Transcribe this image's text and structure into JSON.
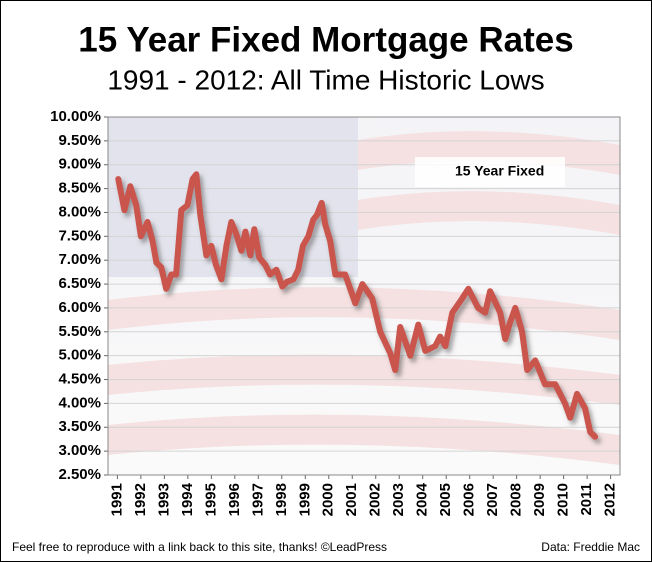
{
  "chart_data": {
    "type": "line",
    "title": "15 Year Fixed Mortgage Rates",
    "subtitle": "1991 - 2012: All Time Historic Lows",
    "footnotes": [
      "Feel free to reproduce with a link back to this site, thanks! ©LeadPress",
      "Data: Freddie Mac"
    ],
    "x": [
      1991.04,
      1991.3,
      1991.55,
      1991.8,
      1992.0,
      1992.28,
      1992.5,
      1992.66,
      1992.87,
      1993.08,
      1993.3,
      1993.5,
      1993.72,
      1993.98,
      1994.2,
      1994.36,
      1994.53,
      1994.79,
      1995.0,
      1995.2,
      1995.43,
      1995.64,
      1995.85,
      1996.06,
      1996.28,
      1996.45,
      1996.66,
      1996.83,
      1997.04,
      1997.3,
      1997.5,
      1997.77,
      1998.02,
      1998.23,
      1998.5,
      1998.7,
      1998.9,
      1999.13,
      1999.34,
      1999.5,
      1999.7,
      1999.85,
      2000.06,
      2000.28,
      2000.7,
      2001.13,
      2001.43,
      2001.85,
      2002.19,
      2002.62,
      2002.83,
      2003.04,
      2003.47,
      2003.81,
      2004.11,
      2004.53,
      2004.74,
      2004.96,
      2005.26,
      2005.68,
      2005.94,
      2006.36,
      2006.66,
      2006.87,
      2007.3,
      2007.51,
      2007.72,
      2007.94,
      2008.23,
      2008.45,
      2008.79,
      2009.21,
      2009.64,
      2010.06,
      2010.28,
      2010.57,
      2010.91,
      2011.13,
      2011.34
    ],
    "series": [
      {
        "name": "15 Year Fixed",
        "color": "#c9544e",
        "values": [
          8.7,
          8.05,
          8.55,
          8.15,
          7.5,
          7.8,
          7.4,
          6.95,
          6.85,
          6.4,
          6.7,
          6.7,
          8.05,
          8.15,
          8.7,
          8.8,
          7.95,
          7.1,
          7.3,
          6.9,
          6.6,
          7.3,
          7.8,
          7.55,
          7.2,
          7.6,
          7.1,
          7.65,
          7.05,
          6.9,
          6.7,
          6.8,
          6.45,
          6.55,
          6.6,
          6.8,
          7.3,
          7.5,
          7.85,
          7.95,
          8.2,
          7.75,
          7.4,
          6.7,
          6.7,
          6.1,
          6.5,
          6.2,
          5.5,
          5.05,
          4.7,
          5.6,
          5.0,
          5.65,
          5.1,
          5.2,
          5.4,
          5.2,
          5.9,
          6.2,
          6.4,
          6.0,
          5.9,
          6.35,
          5.9,
          5.35,
          5.7,
          6.0,
          5.5,
          4.7,
          4.9,
          4.4,
          4.4,
          4.0,
          3.7,
          4.2,
          3.9,
          3.4,
          3.3
        ]
      }
    ],
    "xlim": [
      1990.6,
      2012.4
    ],
    "xticks": [
      1991,
      1992,
      1993,
      1994,
      1995,
      1996,
      1997,
      1998,
      1999,
      2000,
      2001,
      2002,
      2003,
      2004,
      2005,
      2006,
      2007,
      2008,
      2009,
      2010,
      2011,
      2012
    ],
    "ylim": [
      2.5,
      10
    ],
    "yticks": [
      {
        "value": 2.5,
        "label": "2.50%"
      },
      {
        "value": 3,
        "label": "3.00%"
      },
      {
        "value": 3.5,
        "label": "3.50%"
      },
      {
        "value": 4,
        "label": "4.00%"
      },
      {
        "value": 4.5,
        "label": "4.50%"
      },
      {
        "value": 5,
        "label": "5.00%"
      },
      {
        "value": 5.5,
        "label": "5.50%"
      },
      {
        "value": 6,
        "label": "6.00%"
      },
      {
        "value": 6.5,
        "label": "6.50%"
      },
      {
        "value": 7,
        "label": "7.00%"
      },
      {
        "value": 7.5,
        "label": "7.50%"
      },
      {
        "value": 8,
        "label": "8.00%"
      },
      {
        "value": 8.5,
        "label": "8.50%"
      },
      {
        "value": 9,
        "label": "9.00%"
      },
      {
        "value": 9.5,
        "label": "9.50%"
      },
      {
        "value": 10,
        "label": "10.00%"
      }
    ],
    "grid": true,
    "legend": "upper right"
  }
}
